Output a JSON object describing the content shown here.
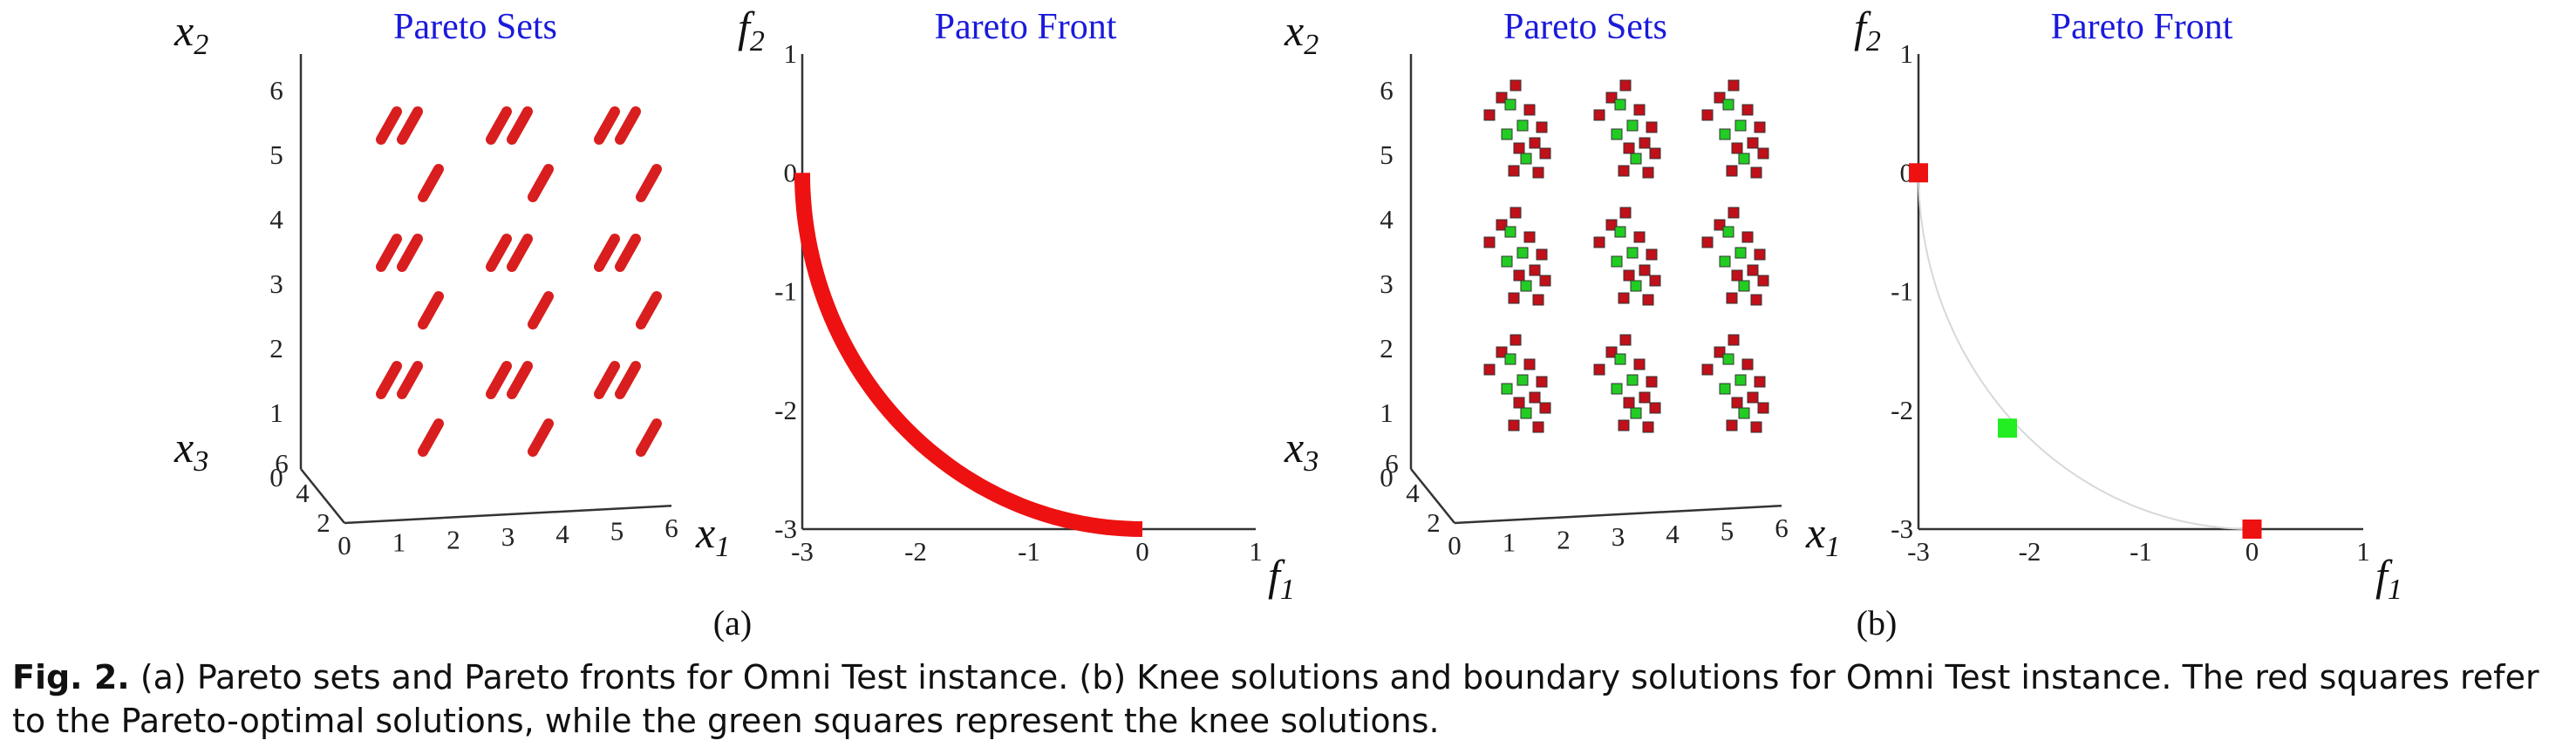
{
  "chart_data": [
    {
      "panel": "(a)",
      "type": "scatter",
      "title": "Pareto Sets",
      "axes": {
        "x1": "x1",
        "x2": "x2",
        "x3": "x3"
      },
      "x1_ticks": [
        "0",
        "1",
        "2",
        "3",
        "4",
        "5",
        "6"
      ],
      "x2_ticks": [
        "0",
        "1",
        "2",
        "3",
        "4",
        "5",
        "6"
      ],
      "x3_ticks": [
        "2",
        "4",
        "6"
      ],
      "series": [
        {
          "color": "#d81e1e",
          "note_groups": [
            {
              "x1": 1,
              "x2": 1
            },
            {
              "x1": 1,
              "x2": 3
            },
            {
              "x1": 1,
              "x2": 5
            },
            {
              "x1": 3,
              "x2": 1
            },
            {
              "x1": 3,
              "x2": 3
            },
            {
              "x1": 3,
              "x2": 5
            },
            {
              "x1": 5,
              "x2": 1
            },
            {
              "x1": 5,
              "x2": 3
            },
            {
              "x1": 5,
              "x2": 5
            }
          ]
        }
      ]
    },
    {
      "panel": "(a)",
      "type": "line",
      "title": "Pareto Front",
      "xlabel": "f1",
      "ylabel": "f2",
      "xlim": [
        -3,
        1
      ],
      "ylim": [
        -3,
        1
      ],
      "x_ticks": [
        "-3",
        "-2",
        "-1",
        "0",
        "1"
      ],
      "y_ticks": [
        "-3",
        "-2",
        "-1",
        "0",
        "1"
      ],
      "series": [
        {
          "color": "#ee1111",
          "x_start": -3,
          "y_start": 0,
          "x_end": 0,
          "y_end": -3
        }
      ]
    },
    {
      "panel": "(b)",
      "type": "scatter",
      "title": "Pareto Sets",
      "axes": {
        "x1": "x1",
        "x2": "x2",
        "x3": "x3"
      },
      "x1_ticks": [
        "0",
        "1",
        "2",
        "3",
        "4",
        "5",
        "6"
      ],
      "x2_ticks": [
        "0",
        "1",
        "2",
        "3",
        "4",
        "5",
        "6"
      ],
      "x3_ticks": [
        "2",
        "4",
        "6"
      ],
      "series": [
        {
          "marker": "square",
          "color": "#c0101a",
          "role": "Pareto-optimal solutions"
        },
        {
          "marker": "square",
          "color": "#22cc22",
          "role": "knee solutions"
        }
      ]
    },
    {
      "panel": "(b)",
      "type": "scatter",
      "title": "Pareto Front",
      "xlabel": "f1",
      "ylabel": "f2",
      "xlim": [
        -3,
        1
      ],
      "ylim": [
        -3,
        1
      ],
      "x_ticks": [
        "-3",
        "-2",
        "-1",
        "0",
        "1"
      ],
      "y_ticks": [
        "-3",
        "-2",
        "-1",
        "0",
        "1"
      ],
      "series": [
        {
          "color": "#ee1111",
          "marker": "square",
          "points": [
            [
              -3,
              0
            ],
            [
              0,
              -3
            ]
          ]
        },
        {
          "color": "#22ee22",
          "marker": "square",
          "points": [
            [
              -2.2,
              -2.15
            ]
          ]
        }
      ]
    }
  ],
  "panel_labels": [
    "(a)",
    "(b)"
  ],
  "caption": {
    "label": "Fig. 2.",
    "text": " (a) Pareto sets and Pareto fronts for Omni Test instance. (b) Knee solutions and boundary solutions for Omni Test instance. The red squares refer to the Pareto-optimal solutions, while the green squares represent the knee solutions."
  }
}
